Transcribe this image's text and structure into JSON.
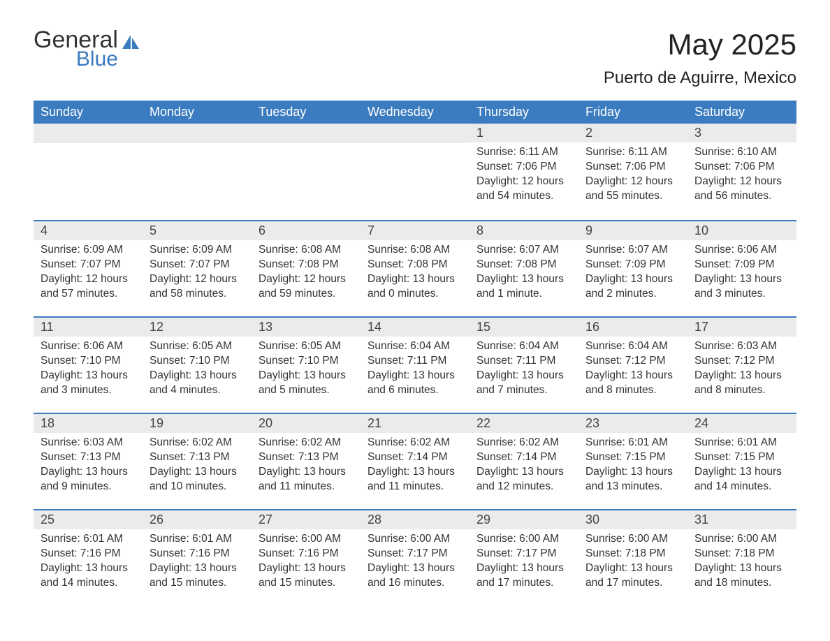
{
  "logo": {
    "text_top": "General",
    "text_bottom": "Blue",
    "color_top": "#333333",
    "color_bottom": "#3b7bbf"
  },
  "header": {
    "month_title": "May 2025",
    "location": "Puerto de Aguirre, Mexico"
  },
  "colors": {
    "header_bg": "#3b7bbf",
    "header_text": "#ffffff",
    "daynum_bg": "#ebebeb",
    "row_border": "#3b7bbf",
    "body_text": "#333333",
    "page_bg": "#ffffff"
  },
  "weekdays": [
    "Sunday",
    "Monday",
    "Tuesday",
    "Wednesday",
    "Thursday",
    "Friday",
    "Saturday"
  ],
  "weeks": [
    [
      null,
      null,
      null,
      null,
      {
        "day": "1",
        "sunrise": "6:11 AM",
        "sunset": "7:06 PM",
        "daylight": "12 hours and 54 minutes."
      },
      {
        "day": "2",
        "sunrise": "6:11 AM",
        "sunset": "7:06 PM",
        "daylight": "12 hours and 55 minutes."
      },
      {
        "day": "3",
        "sunrise": "6:10 AM",
        "sunset": "7:06 PM",
        "daylight": "12 hours and 56 minutes."
      }
    ],
    [
      {
        "day": "4",
        "sunrise": "6:09 AM",
        "sunset": "7:07 PM",
        "daylight": "12 hours and 57 minutes."
      },
      {
        "day": "5",
        "sunrise": "6:09 AM",
        "sunset": "7:07 PM",
        "daylight": "12 hours and 58 minutes."
      },
      {
        "day": "6",
        "sunrise": "6:08 AM",
        "sunset": "7:08 PM",
        "daylight": "12 hours and 59 minutes."
      },
      {
        "day": "7",
        "sunrise": "6:08 AM",
        "sunset": "7:08 PM",
        "daylight": "13 hours and 0 minutes."
      },
      {
        "day": "8",
        "sunrise": "6:07 AM",
        "sunset": "7:08 PM",
        "daylight": "13 hours and 1 minute."
      },
      {
        "day": "9",
        "sunrise": "6:07 AM",
        "sunset": "7:09 PM",
        "daylight": "13 hours and 2 minutes."
      },
      {
        "day": "10",
        "sunrise": "6:06 AM",
        "sunset": "7:09 PM",
        "daylight": "13 hours and 3 minutes."
      }
    ],
    [
      {
        "day": "11",
        "sunrise": "6:06 AM",
        "sunset": "7:10 PM",
        "daylight": "13 hours and 3 minutes."
      },
      {
        "day": "12",
        "sunrise": "6:05 AM",
        "sunset": "7:10 PM",
        "daylight": "13 hours and 4 minutes."
      },
      {
        "day": "13",
        "sunrise": "6:05 AM",
        "sunset": "7:10 PM",
        "daylight": "13 hours and 5 minutes."
      },
      {
        "day": "14",
        "sunrise": "6:04 AM",
        "sunset": "7:11 PM",
        "daylight": "13 hours and 6 minutes."
      },
      {
        "day": "15",
        "sunrise": "6:04 AM",
        "sunset": "7:11 PM",
        "daylight": "13 hours and 7 minutes."
      },
      {
        "day": "16",
        "sunrise": "6:04 AM",
        "sunset": "7:12 PM",
        "daylight": "13 hours and 8 minutes."
      },
      {
        "day": "17",
        "sunrise": "6:03 AM",
        "sunset": "7:12 PM",
        "daylight": "13 hours and 8 minutes."
      }
    ],
    [
      {
        "day": "18",
        "sunrise": "6:03 AM",
        "sunset": "7:13 PM",
        "daylight": "13 hours and 9 minutes."
      },
      {
        "day": "19",
        "sunrise": "6:02 AM",
        "sunset": "7:13 PM",
        "daylight": "13 hours and 10 minutes."
      },
      {
        "day": "20",
        "sunrise": "6:02 AM",
        "sunset": "7:13 PM",
        "daylight": "13 hours and 11 minutes."
      },
      {
        "day": "21",
        "sunrise": "6:02 AM",
        "sunset": "7:14 PM",
        "daylight": "13 hours and 11 minutes."
      },
      {
        "day": "22",
        "sunrise": "6:02 AM",
        "sunset": "7:14 PM",
        "daylight": "13 hours and 12 minutes."
      },
      {
        "day": "23",
        "sunrise": "6:01 AM",
        "sunset": "7:15 PM",
        "daylight": "13 hours and 13 minutes."
      },
      {
        "day": "24",
        "sunrise": "6:01 AM",
        "sunset": "7:15 PM",
        "daylight": "13 hours and 14 minutes."
      }
    ],
    [
      {
        "day": "25",
        "sunrise": "6:01 AM",
        "sunset": "7:16 PM",
        "daylight": "13 hours and 14 minutes."
      },
      {
        "day": "26",
        "sunrise": "6:01 AM",
        "sunset": "7:16 PM",
        "daylight": "13 hours and 15 minutes."
      },
      {
        "day": "27",
        "sunrise": "6:00 AM",
        "sunset": "7:16 PM",
        "daylight": "13 hours and 15 minutes."
      },
      {
        "day": "28",
        "sunrise": "6:00 AM",
        "sunset": "7:17 PM",
        "daylight": "13 hours and 16 minutes."
      },
      {
        "day": "29",
        "sunrise": "6:00 AM",
        "sunset": "7:17 PM",
        "daylight": "13 hours and 17 minutes."
      },
      {
        "day": "30",
        "sunrise": "6:00 AM",
        "sunset": "7:18 PM",
        "daylight": "13 hours and 17 minutes."
      },
      {
        "day": "31",
        "sunrise": "6:00 AM",
        "sunset": "7:18 PM",
        "daylight": "13 hours and 18 minutes."
      }
    ]
  ],
  "labels": {
    "sunrise": "Sunrise: ",
    "sunset": "Sunset: ",
    "daylight": "Daylight: "
  }
}
